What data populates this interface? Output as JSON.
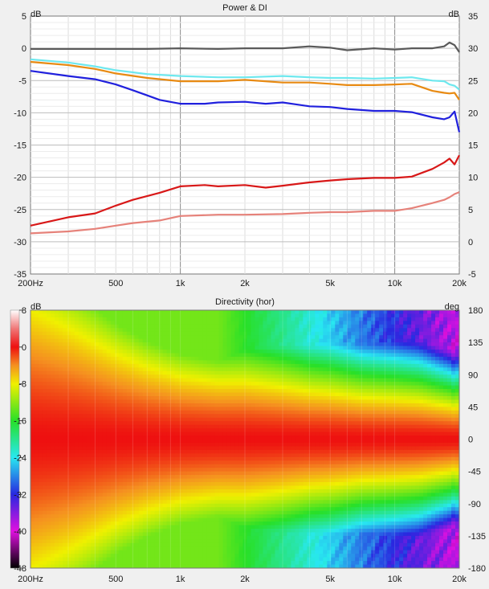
{
  "chart_data": [
    {
      "type": "line",
      "title": "Power & DI",
      "y_unit_left": "dB",
      "y_unit_right": "dB",
      "x_scale": "log",
      "x_range": [
        200,
        20000
      ],
      "ylim_left": [
        -35,
        5
      ],
      "ylim_right": [
        -5,
        35
      ],
      "x_ticks": [
        {
          "v": 200,
          "label": "200Hz"
        },
        {
          "v": 500,
          "label": "500"
        },
        {
          "v": 1000,
          "label": "1k"
        },
        {
          "v": 2000,
          "label": "2k"
        },
        {
          "v": 5000,
          "label": "5k"
        },
        {
          "v": 10000,
          "label": "10k"
        },
        {
          "v": 20000,
          "label": "20k"
        }
      ],
      "y_ticks_left": [
        "5",
        "0",
        "-5",
        "-10",
        "-15",
        "-20",
        "-25",
        "-30",
        "-35"
      ],
      "y_ticks_right": [
        "35",
        "30",
        "25",
        "20",
        "15",
        "10",
        "5",
        "0",
        "-5"
      ],
      "grid": true,
      "series": [
        {
          "color": "#5a5a5a",
          "axis": "left",
          "x": [
            200,
            300,
            400,
            500,
            700,
            1000,
            1500,
            2000,
            3000,
            4000,
            5000,
            6000,
            8000,
            10000,
            12000,
            15000,
            17000,
            18000,
            19000,
            20000
          ],
          "y": [
            -0.1,
            -0.1,
            -0.1,
            -0.1,
            -0.1,
            0.0,
            -0.1,
            0.0,
            0.0,
            0.3,
            0.1,
            -0.3,
            0.0,
            -0.2,
            0.0,
            0.0,
            0.3,
            0.9,
            0.5,
            -0.6
          ]
        },
        {
          "color": "#6ee8ee",
          "axis": "left",
          "x": [
            200,
            300,
            400,
            500,
            700,
            1000,
            1500,
            2000,
            3000,
            4000,
            5000,
            6000,
            8000,
            10000,
            12000,
            15000,
            17000,
            18000,
            19000,
            20000
          ],
          "y": [
            -1.7,
            -2.2,
            -2.8,
            -3.4,
            -4.0,
            -4.3,
            -4.5,
            -4.5,
            -4.3,
            -4.5,
            -4.6,
            -4.6,
            -4.7,
            -4.6,
            -4.5,
            -5.0,
            -5.1,
            -5.6,
            -5.8,
            -6.4
          ]
        },
        {
          "color": "#e88a12",
          "axis": "left",
          "x": [
            200,
            300,
            400,
            500,
            700,
            1000,
            1500,
            2000,
            3000,
            4000,
            5000,
            6000,
            8000,
            10000,
            12000,
            15000,
            17000,
            18000,
            19000,
            20000
          ],
          "y": [
            -2.1,
            -2.6,
            -3.2,
            -3.9,
            -4.6,
            -5.1,
            -5.1,
            -4.9,
            -5.3,
            -5.3,
            -5.5,
            -5.7,
            -5.7,
            -5.6,
            -5.5,
            -6.6,
            -6.9,
            -7.0,
            -6.9,
            -8.0
          ]
        },
        {
          "color": "#2020dd",
          "axis": "left",
          "x": [
            200,
            300,
            400,
            500,
            600,
            700,
            800,
            1000,
            1300,
            1500,
            2000,
            2500,
            3000,
            4000,
            5000,
            6000,
            8000,
            10000,
            12000,
            15000,
            17000,
            18000,
            19000,
            20000
          ],
          "y": [
            -3.5,
            -4.3,
            -4.8,
            -5.6,
            -6.5,
            -7.3,
            -8.0,
            -8.6,
            -8.6,
            -8.4,
            -8.3,
            -8.6,
            -8.4,
            -9.0,
            -9.1,
            -9.4,
            -9.7,
            -9.7,
            -9.9,
            -10.7,
            -11.0,
            -10.7,
            -9.8,
            -13.0
          ]
        },
        {
          "color": "#d81818",
          "axis": "right",
          "x": [
            200,
            300,
            400,
            500,
            600,
            800,
            1000,
            1300,
            1500,
            2000,
            2500,
            3000,
            4000,
            5000,
            6000,
            8000,
            10000,
            12000,
            15000,
            17000,
            18000,
            19000,
            20000
          ],
          "y": [
            2.5,
            3.8,
            4.4,
            5.6,
            6.5,
            7.6,
            8.6,
            8.8,
            8.6,
            8.8,
            8.4,
            8.7,
            9.2,
            9.5,
            9.7,
            9.9,
            9.9,
            10.1,
            11.3,
            12.3,
            12.9,
            12.0,
            13.4
          ]
        },
        {
          "color": "#e6827a",
          "axis": "right",
          "x": [
            200,
            300,
            400,
            500,
            600,
            800,
            1000,
            1500,
            2000,
            3000,
            4000,
            5000,
            6000,
            8000,
            10000,
            12000,
            15000,
            17000,
            18000,
            19000,
            20000
          ],
          "y": [
            1.3,
            1.6,
            2.0,
            2.5,
            2.9,
            3.3,
            4.0,
            4.2,
            4.2,
            4.3,
            4.5,
            4.6,
            4.6,
            4.8,
            4.8,
            5.2,
            6.0,
            6.5,
            6.9,
            7.4,
            7.7
          ]
        }
      ]
    },
    {
      "type": "heatmap",
      "title": "Directivity (hor)",
      "x_scale": "log",
      "x_range": [
        200,
        20000
      ],
      "ylim": [
        -180,
        180
      ],
      "y_unit": "deg",
      "x_ticks": [
        {
          "v": 200,
          "label": "200Hz"
        },
        {
          "v": 500,
          "label": "500"
        },
        {
          "v": 1000,
          "label": "1k"
        },
        {
          "v": 2000,
          "label": "2k"
        },
        {
          "v": 5000,
          "label": "5k"
        },
        {
          "v": 10000,
          "label": "10k"
        },
        {
          "v": 20000,
          "label": "20k"
        }
      ],
      "y_ticks": [
        "180",
        "135",
        "90",
        "45",
        "0",
        "-45",
        "-90",
        "-135",
        "-180"
      ],
      "color_scale": {
        "unit": "dB",
        "range": [
          -48,
          8
        ],
        "ticks": [
          "8",
          "0",
          "-8",
          "-16",
          "-24",
          "-32",
          "-40",
          "-48"
        ],
        "stops": [
          {
            "v": 8,
            "c": "#ffffff"
          },
          {
            "v": 4,
            "c": "#f07878"
          },
          {
            "v": 0,
            "c": "#ee1010"
          },
          {
            "v": -4,
            "c": "#f59020"
          },
          {
            "v": -8,
            "c": "#f0f000"
          },
          {
            "v": -16,
            "c": "#28e028"
          },
          {
            "v": -24,
            "c": "#28e8f0"
          },
          {
            "v": -32,
            "c": "#2828e0"
          },
          {
            "v": -40,
            "c": "#e010e0"
          },
          {
            "v": -48,
            "c": "#000000"
          }
        ]
      },
      "beamwidth_deg": {
        "f": [
          200,
          300,
          500,
          700,
          1000,
          1500,
          2000,
          3000,
          4000,
          5000,
          7000,
          10000,
          13000,
          16000,
          18000,
          19000,
          20000
        ],
        "w": [
          150,
          128,
          98,
          83,
          72,
          66,
          66,
          60,
          55,
          53,
          48,
          46,
          44,
          40,
          38,
          36,
          38
        ]
      }
    }
  ]
}
